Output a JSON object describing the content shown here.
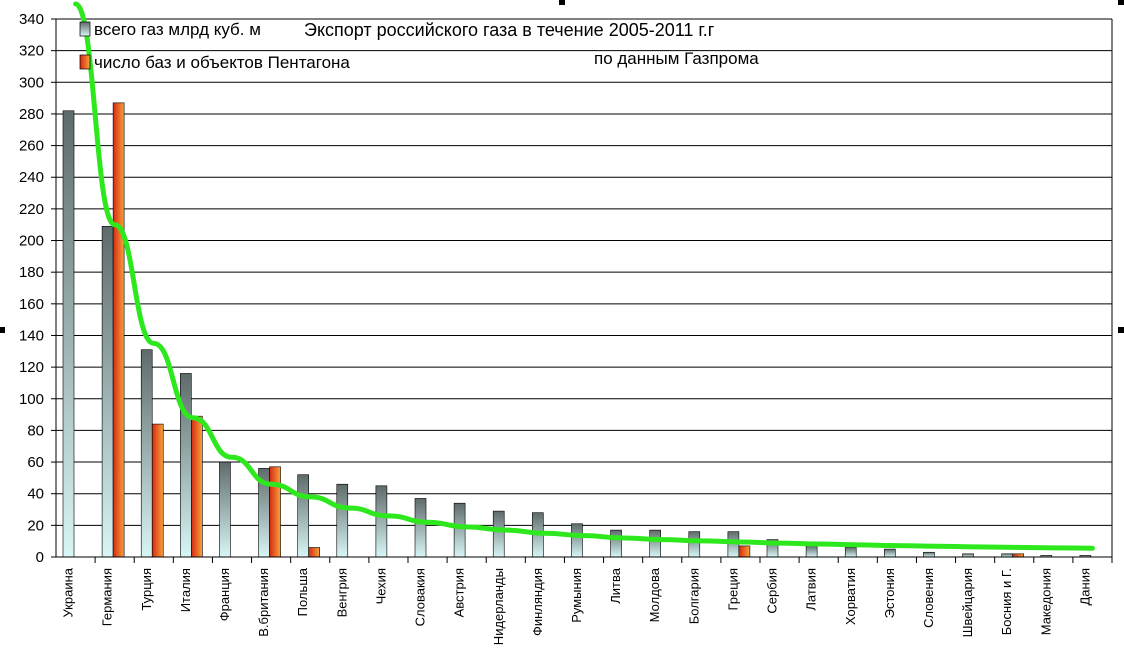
{
  "chart_data": {
    "type": "bar",
    "title": "Экспорт российского газа в течение 2005-2011 г.г",
    "subtitle": "по данным Газпрома",
    "ylim": [
      0,
      340
    ],
    "yticks": [
      0,
      20,
      40,
      60,
      80,
      100,
      120,
      140,
      160,
      180,
      200,
      220,
      240,
      260,
      280,
      300,
      320,
      340
    ],
    "grid": true,
    "legend_position": "top-left",
    "categories": [
      "Украина",
      "Германия",
      "Турция",
      "Италия",
      "Франция",
      "В.британия",
      "Польша",
      "Венгрия",
      "Чехия",
      "Словакия",
      "Австрия",
      "Нидерланды",
      "Финляндия",
      "Румыния",
      "Литва",
      "Молдова",
      "Болгария",
      "Греция",
      "Сербия",
      "Латвия",
      "Хорватия",
      "Эстония",
      "Словения",
      "Швейцария",
      "Босния и Г.",
      "Македония",
      "Дания"
    ],
    "series": [
      {
        "name": "всего газ млрд куб. м",
        "color": "#6f7f7f",
        "values": [
          282,
          209,
          131,
          116,
          60,
          56,
          52,
          46,
          45,
          37,
          34,
          29,
          28,
          21,
          17,
          17,
          16,
          16,
          11,
          7,
          6,
          5,
          3,
          2,
          2,
          1,
          1
        ]
      },
      {
        "name": "число баз и объектов Пентагона",
        "color": "#e8401c",
        "values": [
          0,
          287,
          84,
          89,
          0,
          57,
          6,
          0,
          0,
          0,
          0,
          0,
          0,
          0,
          0,
          0,
          0,
          7,
          0,
          0,
          0,
          0,
          0,
          0,
          2,
          0,
          0
        ]
      }
    ],
    "trendline": {
      "color": "#2ee81e",
      "values": [
        350,
        210,
        135,
        88,
        63,
        46,
        38,
        31,
        26,
        22,
        19,
        17,
        15,
        13.5,
        12,
        11,
        10.2,
        9.5,
        8.8,
        8.2,
        7.7,
        7.2,
        6.8,
        6.4,
        6.1,
        5.8,
        5.5
      ]
    }
  }
}
